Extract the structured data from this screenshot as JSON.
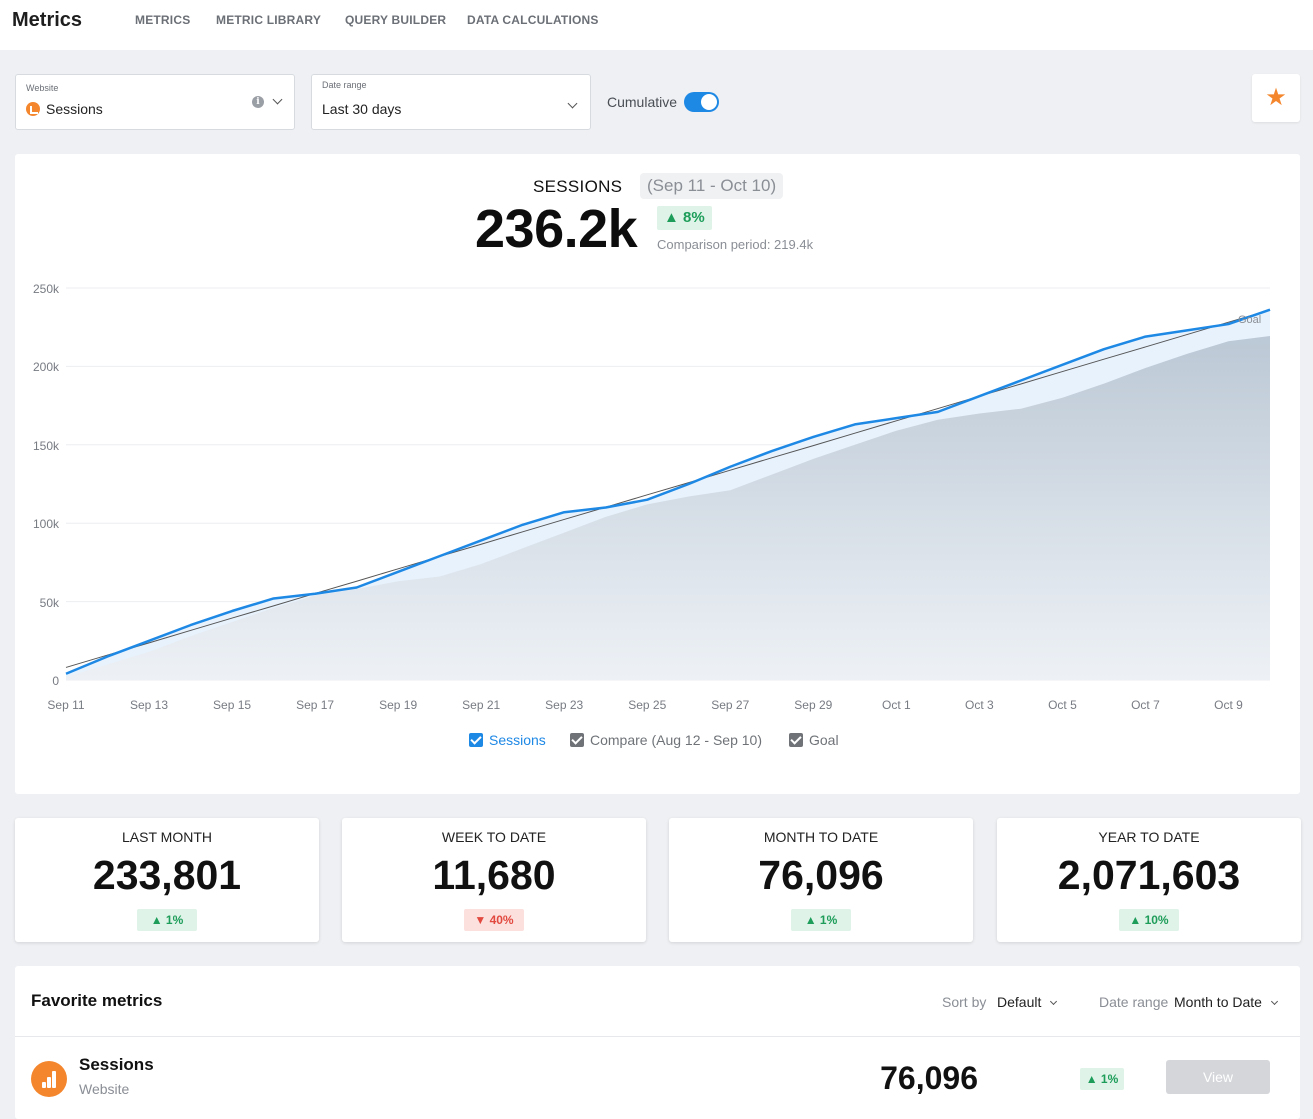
{
  "app": {
    "title": "Metrics"
  },
  "nav": {
    "items": [
      "METRICS",
      "METRIC LIBRARY",
      "QUERY BUILDER",
      "DATA CALCULATIONS"
    ]
  },
  "controls": {
    "website": {
      "label": "Website",
      "value": "Sessions",
      "icon": "google-analytics-icon"
    },
    "date_range": {
      "label": "Date range",
      "value": "Last 30 days"
    },
    "cumulative": {
      "label": "Cumulative",
      "on": true
    },
    "favorite_icon": "star-icon"
  },
  "summary": {
    "metric": "SESSIONS",
    "period": "(Sep 11 - Oct 10)",
    "value": "236.2k",
    "delta": "▲ 8%",
    "comparison": "Comparison period: 219.4k"
  },
  "chart_data": {
    "type": "area",
    "ylim": [
      0,
      250000
    ],
    "yticks": [
      "0",
      "50k",
      "100k",
      "150k",
      "200k",
      "250k"
    ],
    "xtick_labels": [
      "Sep 11",
      "Sep 13",
      "Sep 15",
      "Sep 17",
      "Sep 19",
      "Sep 21",
      "Sep 23",
      "Sep 25",
      "Sep 27",
      "Sep 29",
      "Oct 1",
      "Oct 3",
      "Oct 5",
      "Oct 7",
      "Oct 9"
    ],
    "x": [
      "Sep 11",
      "Sep 12",
      "Sep 13",
      "Sep 14",
      "Sep 15",
      "Sep 16",
      "Sep 17",
      "Sep 18",
      "Sep 19",
      "Sep 20",
      "Sep 21",
      "Sep 22",
      "Sep 23",
      "Sep 24",
      "Sep 25",
      "Sep 26",
      "Sep 27",
      "Sep 28",
      "Sep 29",
      "Sep 30",
      "Oct 1",
      "Oct 2",
      "Oct 3",
      "Oct 4",
      "Oct 5",
      "Oct 6",
      "Oct 7",
      "Oct 8",
      "Oct 9",
      "Oct 10"
    ],
    "series": [
      {
        "name": "Sessions",
        "color": "#1e88e5",
        "values": [
          4000,
          15000,
          25000,
          35000,
          44000,
          52000,
          55000,
          59000,
          69000,
          79000,
          89000,
          99000,
          107000,
          110000,
          115000,
          125000,
          136000,
          146000,
          155000,
          163000,
          167000,
          171000,
          181000,
          191000,
          201000,
          211000,
          219000,
          223000,
          227000,
          236200
        ]
      },
      {
        "name": "Compare (Aug 12 - Sep 10)",
        "color": "#c4ced9",
        "values": [
          2000,
          10000,
          18000,
          28000,
          37000,
          46000,
          54000,
          58000,
          63000,
          66000,
          74000,
          84000,
          94000,
          104000,
          112000,
          117000,
          121000,
          131000,
          141000,
          150000,
          159000,
          166000,
          170000,
          173000,
          180000,
          189000,
          199000,
          208000,
          216000,
          219400
        ]
      },
      {
        "name": "Goal",
        "color": "#555555",
        "values": [
          8000,
          15900,
          23700,
          31600,
          39500,
          47300,
          55200,
          63000,
          70900,
          78800,
          86600,
          94500,
          102400,
          110200,
          118100,
          125900,
          133800,
          141700,
          149500,
          157400,
          165300,
          173100,
          181000,
          188800,
          196700,
          204600,
          212400,
          220300,
          228200,
          236000
        ]
      }
    ],
    "goal_label": "Goal",
    "legend": [
      {
        "label": "Sessions",
        "checked": true,
        "color": "#1e88e5"
      },
      {
        "label": "Compare (Aug 12 - Sep 10)",
        "checked": true,
        "color": "#6f7378"
      },
      {
        "label": "Goal",
        "checked": true,
        "color": "#6f7378"
      }
    ]
  },
  "stats": [
    {
      "label": "LAST MONTH",
      "value": "233,801",
      "delta": "▲ 1%",
      "trend": "up"
    },
    {
      "label": "WEEK TO DATE",
      "value": "11,680",
      "delta": "▼ 40%",
      "trend": "down"
    },
    {
      "label": "MONTH TO DATE",
      "value": "76,096",
      "delta": "▲ 1%",
      "trend": "up"
    },
    {
      "label": "YEAR TO DATE",
      "value": "2,071,603",
      "delta": "▲ 10%",
      "trend": "up"
    }
  ],
  "favorites": {
    "title": "Favorite metrics",
    "sort_label": "Sort by",
    "sort_value": "Default",
    "range_label": "Date range",
    "range_value": "Month to Date",
    "items": [
      {
        "name": "Sessions",
        "source": "Website",
        "value": "76,096",
        "delta": "▲ 1%",
        "action": "View"
      }
    ]
  }
}
